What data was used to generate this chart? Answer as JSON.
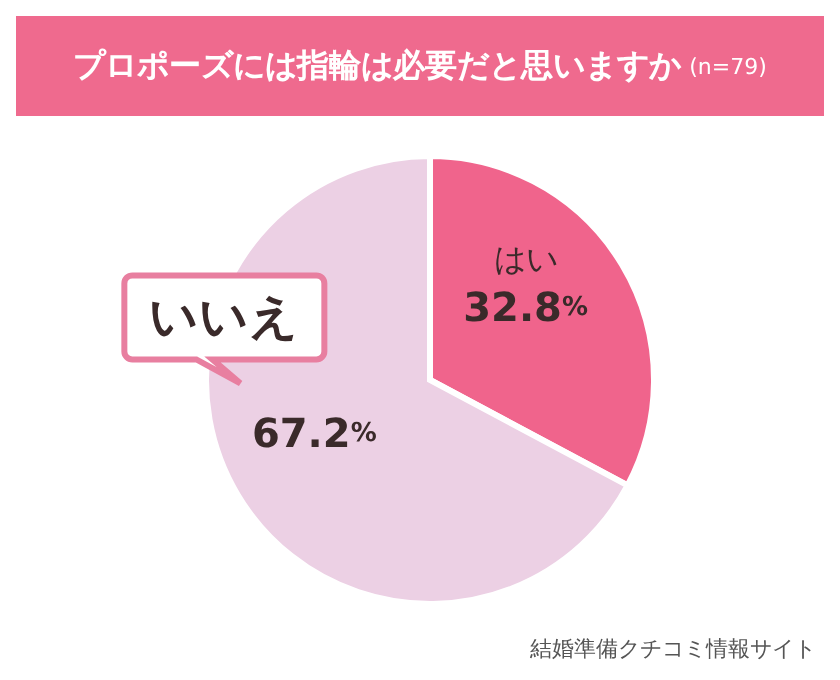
{
  "chart_data": {
    "type": "pie",
    "title": "プロポーズには指輪は必要だと思いますか",
    "subtitle": "(n=79)",
    "categories": [
      "はい",
      "いいえ"
    ],
    "values": [
      32.8,
      67.2
    ],
    "colors": [
      "#f0648c",
      "#ecd0e4"
    ],
    "value_labels": [
      "32.8%",
      "67.2%"
    ],
    "annotations": [
      "結婚準備クチコミ情報サイト"
    ]
  }
}
